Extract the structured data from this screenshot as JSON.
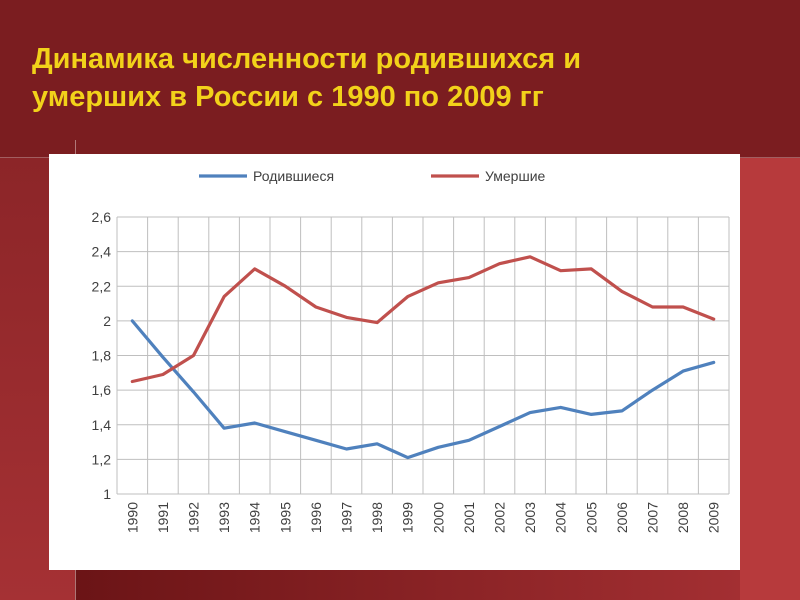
{
  "slide": {
    "title_line1": "Динамика численности родившихся и",
    "title_line2": "умерших в России с 1990 по 2009 гг",
    "title_color": "#f2d21a",
    "background_color": "#7b1d20"
  },
  "chart_data": {
    "type": "line",
    "title": "",
    "xlabel": "",
    "ylabel": "",
    "x": [
      "1990",
      "1991",
      "1992",
      "1993",
      "1994",
      "1995",
      "1996",
      "1997",
      "1998",
      "1999",
      "2000",
      "2001",
      "2002",
      "2003",
      "2004",
      "2005",
      "2006",
      "2007",
      "2008",
      "2009"
    ],
    "ylim": [
      1,
      2.6
    ],
    "yticks": [
      "1",
      "1,2",
      "1,4",
      "1,6",
      "1,8",
      "2",
      "2,2",
      "2,4",
      "2,6"
    ],
    "grid": true,
    "legend_position": "top",
    "series": [
      {
        "name": "Родившиеся",
        "color": "#4f81bd",
        "values": [
          2.0,
          1.79,
          1.59,
          1.38,
          1.41,
          1.36,
          1.31,
          1.26,
          1.29,
          1.21,
          1.27,
          1.31,
          1.39,
          1.47,
          1.5,
          1.46,
          1.48,
          1.6,
          1.71,
          1.76
        ]
      },
      {
        "name": "Умершие",
        "color": "#c0504d",
        "values": [
          1.65,
          1.69,
          1.8,
          2.14,
          2.3,
          2.2,
          2.08,
          2.02,
          1.99,
          2.14,
          2.22,
          2.25,
          2.33,
          2.37,
          2.29,
          2.3,
          2.17,
          2.08,
          2.08,
          2.01
        ]
      }
    ]
  }
}
